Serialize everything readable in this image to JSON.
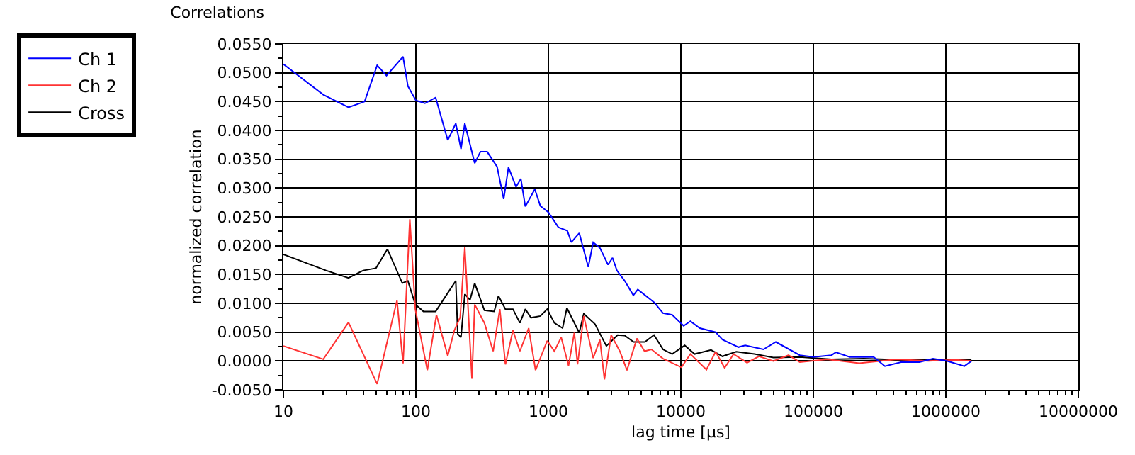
{
  "chart_data": {
    "type": "line",
    "title": "Correlations",
    "xlabel": "lag time [µs]",
    "ylabel": "normalized correlation",
    "log": "x",
    "grid": true,
    "legend": "top left",
    "marker": "none",
    "line_style": "solid",
    "xlim": [
      10,
      10000000
    ],
    "xticks": [
      10,
      {
        "value": 20,
        "label": null
      },
      {
        "value": 30,
        "label": null
      },
      {
        "value": 40,
        "label": null
      },
      {
        "value": 50,
        "label": null
      },
      {
        "value": 60,
        "label": null
      },
      {
        "value": 70,
        "label": null
      },
      {
        "value": 80,
        "label": null
      },
      {
        "value": 90,
        "label": null
      },
      100,
      {
        "value": 200,
        "label": null
      },
      {
        "value": 300,
        "label": null
      },
      {
        "value": 400,
        "label": null
      },
      {
        "value": 500,
        "label": null
      },
      {
        "value": 600,
        "label": null
      },
      {
        "value": 700,
        "label": null
      },
      {
        "value": 800,
        "label": null
      },
      {
        "value": 900,
        "label": null
      },
      1000,
      {
        "value": 2000,
        "label": null
      },
      {
        "value": 3000,
        "label": null
      },
      {
        "value": 4000,
        "label": null
      },
      {
        "value": 5000,
        "label": null
      },
      {
        "value": 6000,
        "label": null
      },
      {
        "value": 7000,
        "label": null
      },
      {
        "value": 8000,
        "label": null
      },
      {
        "value": 9000,
        "label": null
      },
      10000,
      {
        "value": 20000,
        "label": null
      },
      {
        "value": 30000,
        "label": null
      },
      {
        "value": 40000,
        "label": null
      },
      {
        "value": 50000,
        "label": null
      },
      {
        "value": 60000,
        "label": null
      },
      {
        "value": 70000,
        "label": null
      },
      {
        "value": 80000,
        "label": null
      },
      {
        "value": 90000,
        "label": null
      },
      100000,
      {
        "value": 200000,
        "label": null
      },
      {
        "value": 300000,
        "label": null
      },
      {
        "value": 400000,
        "label": null
      },
      {
        "value": 500000,
        "label": null
      },
      {
        "value": 600000,
        "label": null
      },
      {
        "value": 700000,
        "label": null
      },
      {
        "value": 800000,
        "label": null
      },
      {
        "value": 900000,
        "label": null
      },
      1000000,
      {
        "value": 2000000,
        "label": null
      },
      {
        "value": 3000000,
        "label": null
      },
      {
        "value": 4000000,
        "label": null
      },
      {
        "value": 5000000,
        "label": null
      },
      {
        "value": 6000000,
        "label": null
      },
      {
        "value": 7000000,
        "label": null
      },
      {
        "value": 8000000,
        "label": null
      },
      {
        "value": 9000000,
        "label": null
      },
      10000000
    ],
    "ylim": [
      -0.005,
      0.055
    ],
    "yticks": [
      {
        "value": -0.005,
        "label": "-0.0050"
      },
      {
        "value": -0.0025,
        "label": null
      },
      {
        "value": 0,
        "label": "0.0000"
      },
      {
        "value": 0.0025,
        "label": null
      },
      {
        "value": 0.005,
        "label": "0.0050"
      },
      {
        "value": 0.0075,
        "label": null
      },
      {
        "value": 0.01,
        "label": "0.0100"
      },
      {
        "value": 0.0125,
        "label": null
      },
      {
        "value": 0.015,
        "label": "0.0150"
      },
      {
        "value": 0.0175,
        "label": null
      },
      {
        "value": 0.02,
        "label": "0.0200"
      },
      {
        "value": 0.0225,
        "label": null
      },
      {
        "value": 0.025,
        "label": "0.0250"
      },
      {
        "value": 0.0275,
        "label": null
      },
      {
        "value": 0.03,
        "label": "0.0300"
      },
      {
        "value": 0.0325,
        "label": null
      },
      {
        "value": 0.035,
        "label": "0.0350"
      },
      {
        "value": 0.0375,
        "label": null
      },
      {
        "value": 0.04,
        "label": "0.0400"
      },
      {
        "value": 0.0425,
        "label": null
      },
      {
        "value": 0.045,
        "label": "0.0450"
      },
      {
        "value": 0.0475,
        "label": null
      },
      {
        "value": 0.05,
        "label": "0.0500"
      },
      {
        "value": 0.0525,
        "label": null
      },
      {
        "value": 0.055,
        "label": "0.0550"
      }
    ],
    "series": [
      {
        "name": "Ch 1",
        "color": "#0000ff",
        "x": [
          10,
          20,
          31,
          41,
          51,
          60,
          80,
          87,
          100,
          117,
          141,
          174,
          200,
          219,
          234,
          278,
          307,
          345,
          410,
          460,
          500,
          570,
          620,
          670,
          790,
          870,
          1000,
          1190,
          1390,
          1490,
          1710,
          2000,
          2180,
          2450,
          2820,
          3050,
          3290,
          3770,
          4380,
          4730,
          6270,
          7340,
          8600,
          10500,
          11800,
          13900,
          18300,
          20600,
          27200,
          30600,
          42000,
          52100,
          79000,
          100000,
          137000,
          148000,
          188000,
          285000,
          347000,
          459000,
          631000,
          800000,
          1016000,
          1380000,
          1560000
        ],
        "values": [
          0.0515,
          0.0462,
          0.044,
          0.045,
          0.0513,
          0.0495,
          0.0528,
          0.0477,
          0.0452,
          0.0447,
          0.0457,
          0.0383,
          0.0412,
          0.0368,
          0.0412,
          0.0343,
          0.0363,
          0.0363,
          0.0337,
          0.0281,
          0.0336,
          0.0302,
          0.0316,
          0.0268,
          0.0298,
          0.0269,
          0.0258,
          0.0232,
          0.0226,
          0.0206,
          0.0222,
          0.0163,
          0.0206,
          0.0196,
          0.0167,
          0.0179,
          0.0157,
          0.0139,
          0.0114,
          0.0124,
          0.0102,
          0.0083,
          0.008,
          0.0061,
          0.0069,
          0.0057,
          0.005,
          0.0037,
          0.0024,
          0.0027,
          0.002,
          0.0033,
          0.001,
          0.0007,
          0.001,
          0.0015,
          0.0007,
          0.0007,
          -0.0009,
          -0.0002,
          -0.0002,
          0.0004,
          0.0,
          -0.0009,
          0.0
        ]
      },
      {
        "name": "Ch 2",
        "color": "#ff3333",
        "x": [
          10,
          20,
          31,
          51,
          72,
          80,
          90,
          99,
          122,
          143,
          174,
          195,
          216,
          234,
          265,
          278,
          329,
          383,
          430,
          474,
          540,
          610,
          710,
          800,
          980,
          1110,
          1250,
          1420,
          1570,
          1660,
          1850,
          2180,
          2450,
          2650,
          2980,
          3460,
          3920,
          4660,
          5320,
          6000,
          7340,
          10100,
          11800,
          15600,
          18300,
          21400,
          25000,
          31600,
          38800,
          49900,
          65000,
          79000,
          127000,
          222000,
          425000,
          740000,
          1190000,
          1560000
        ],
        "values": [
          0.0026,
          0.0003,
          0.0067,
          -0.004,
          0.0105,
          -0.0004,
          0.0246,
          0.009,
          -0.0016,
          0.008,
          0.0009,
          0.0053,
          0.0076,
          0.0197,
          -0.0031,
          0.0098,
          0.0066,
          0.0017,
          0.009,
          -0.0006,
          0.0053,
          0.0017,
          0.0057,
          -0.0016,
          0.0035,
          0.0017,
          0.0041,
          -0.0008,
          0.0049,
          -0.0006,
          0.0078,
          0.0005,
          0.0037,
          -0.0032,
          0.0045,
          0.0017,
          -0.0016,
          0.0039,
          0.0017,
          0.002,
          0.0004,
          -0.0011,
          0.0012,
          -0.0015,
          0.0016,
          -0.0012,
          0.0012,
          -0.0003,
          0.0008,
          0.0,
          0.001,
          -0.0002,
          0.0003,
          -0.0004,
          0.0003,
          0.0,
          0.0002,
          0.0
        ]
      },
      {
        "name": "Cross",
        "color": "#000000",
        "x": [
          10,
          21,
          31,
          40,
          50,
          61,
          79,
          87,
          99,
          114,
          141,
          174,
          200,
          207,
          219,
          234,
          256,
          278,
          329,
          390,
          420,
          474,
          540,
          610,
          670,
          740,
          870,
          980,
          1110,
          1280,
          1380,
          1710,
          1850,
          2250,
          2740,
          3330,
          3770,
          4400,
          5350,
          6270,
          7340,
          8600,
          10700,
          12700,
          16900,
          20600,
          26200,
          35900,
          49900,
          79000,
          137000,
          240000,
          459000,
          866000,
          1560000
        ],
        "values": [
          0.0185,
          0.0157,
          0.0144,
          0.0157,
          0.0161,
          0.0194,
          0.0135,
          0.0139,
          0.0098,
          0.0086,
          0.0086,
          0.0118,
          0.0139,
          0.0047,
          0.0041,
          0.0116,
          0.0106,
          0.0135,
          0.0088,
          0.0086,
          0.0113,
          0.009,
          0.009,
          0.0066,
          0.009,
          0.0075,
          0.0078,
          0.009,
          0.0066,
          0.0057,
          0.0092,
          0.0049,
          0.0082,
          0.0064,
          0.0026,
          0.0045,
          0.0044,
          0.0033,
          0.0033,
          0.0045,
          0.002,
          0.0012,
          0.0027,
          0.0012,
          0.0019,
          0.0008,
          0.0016,
          0.0012,
          0.0006,
          0.0007,
          0.0003,
          0.0004,
          0.0002,
          0.0002,
          0.0002
        ]
      }
    ]
  }
}
